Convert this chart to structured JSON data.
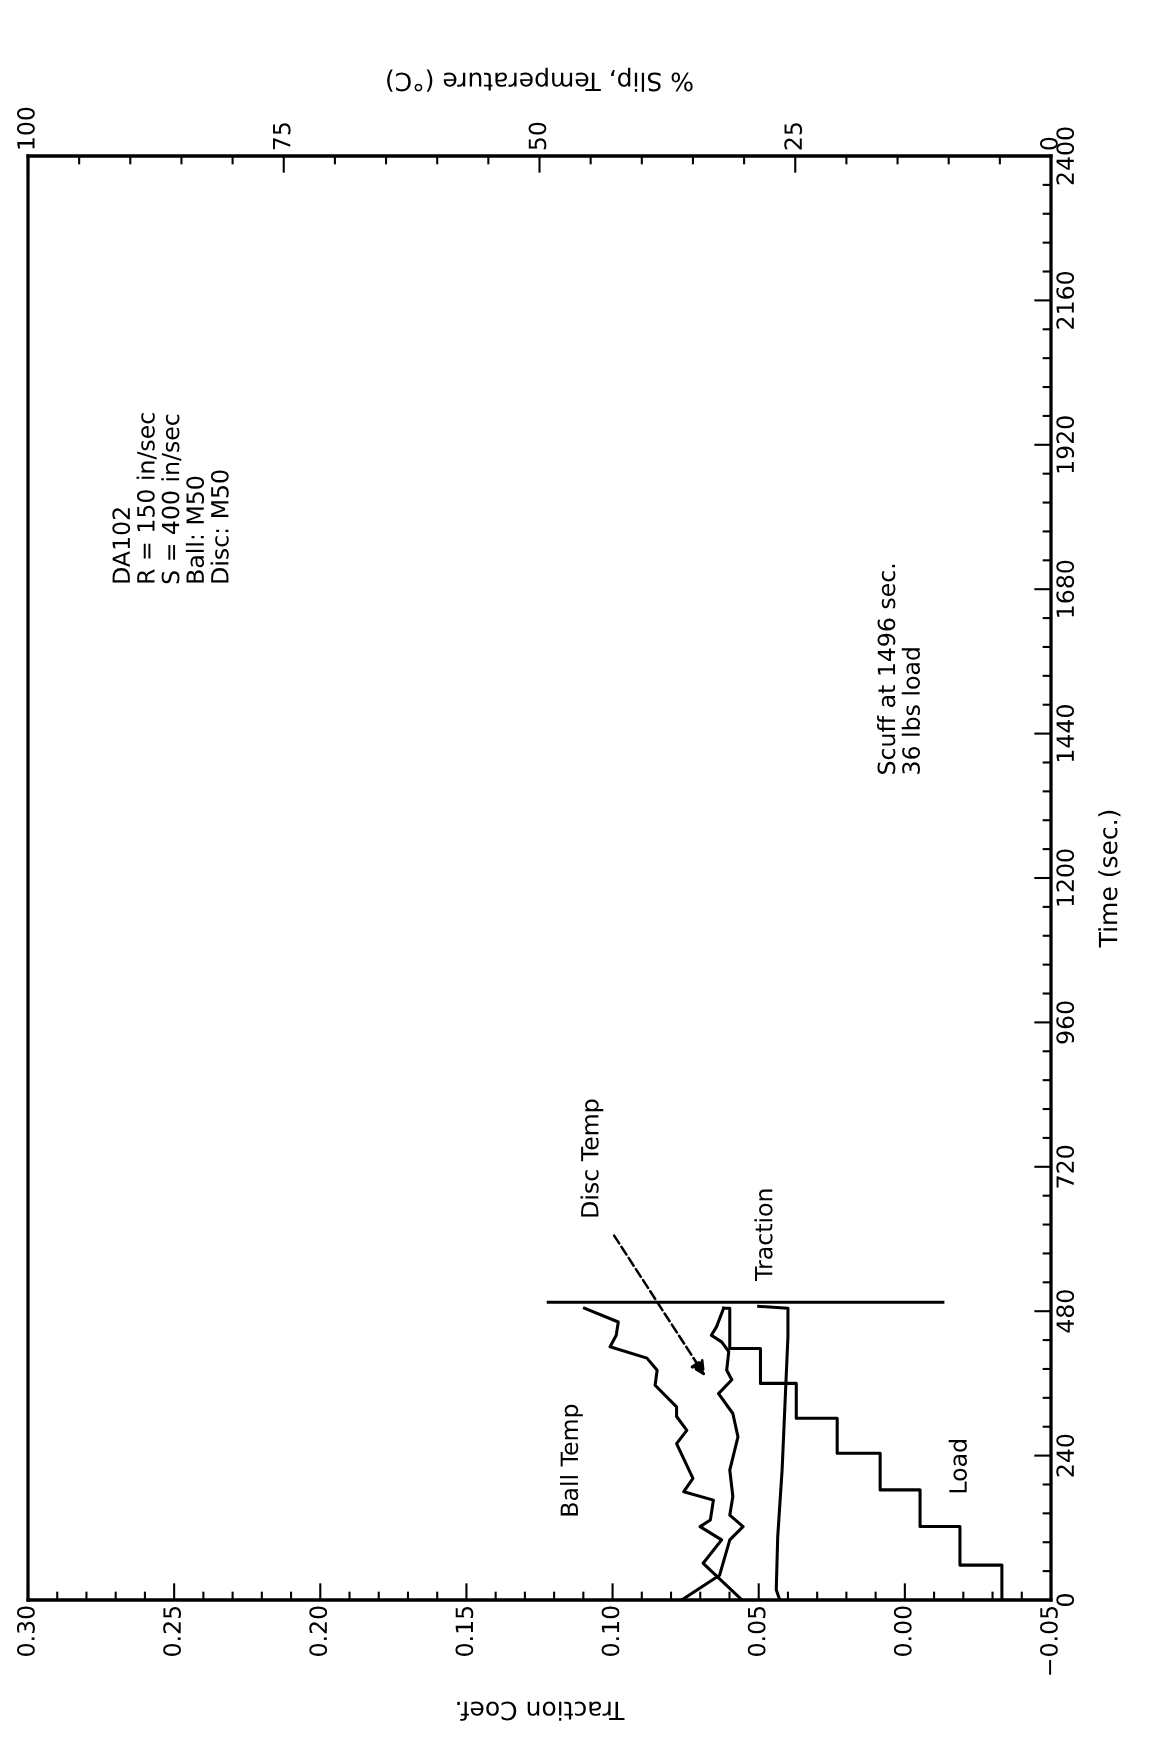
{
  "chart_data": {
    "type": "line",
    "xlabel": "Traction Coef.",
    "ylabel": "Time (sec.)",
    "x2label": "% Slip, Temperature (°C)",
    "xlim": [
      0.3,
      -0.05
    ],
    "xticks": [
      {
        "value": 0.3,
        "label": "0.30"
      },
      {
        "value": 0.25,
        "label": "0.25"
      },
      {
        "value": 0.2,
        "label": "0.20"
      },
      {
        "value": 0.15,
        "label": "0.15"
      },
      {
        "value": 0.1,
        "label": "0.10"
      },
      {
        "value": 0.05,
        "label": "0.05"
      },
      {
        "value": 0.0,
        "label": "0.00"
      },
      {
        "value": -0.05,
        "label": "−0.05"
      }
    ],
    "ylim": [
      0,
      2400
    ],
    "yticks": [
      0,
      240,
      480,
      720,
      960,
      1200,
      1440,
      1680,
      1920,
      2160,
      2400
    ],
    "x2lim": [
      100,
      0
    ],
    "x2ticks": [
      100,
      75,
      50,
      25,
      0
    ],
    "series": [
      {
        "name": "Ball Temp",
        "axis": "x2",
        "color": "#000000",
        "x": [
          30.2,
          34.0,
          32.2,
          34.3,
          33.3,
          33.0,
          35.9,
          35.0,
          36.6,
          35.6,
          36.6,
          36.6,
          38.7,
          38.5,
          39.5,
          43.1,
          42.5,
          42.3,
          45.6
        ],
        "values": [
          0,
          61,
          100,
          122,
          133,
          166,
          180,
          202,
          260,
          282,
          305,
          321,
          357,
          382,
          402,
          421,
          440,
          462,
          485
        ]
      },
      {
        "name": "Disc Temp",
        "axis": "x2",
        "color": "#000000",
        "x": [
          36.1,
          32.4,
          31.4,
          30.1,
          31.4,
          31.1,
          31.4,
          30.6,
          31.1,
          32.5,
          31.2,
          31.7,
          31.5,
          32.2,
          33.2,
          32.7,
          32.0
        ],
        "values": [
          0,
          41,
          100,
          122,
          141,
          172,
          216,
          271,
          310,
          343,
          366,
          382,
          413,
          429,
          440,
          454,
          485
        ]
      },
      {
        "name": "Traction",
        "color": "#000000",
        "x": [
          0.043,
          0.044,
          0.0435,
          0.042,
          0.041,
          0.04,
          0.04,
          0.05
        ],
        "values": [
          3,
          17,
          105,
          216,
          327,
          438,
          485,
          488
        ]
      },
      {
        "name": "Load",
        "axis": "x2",
        "color": "#000000",
        "x": [
          4.8,
          4.8,
          8.9,
          8.9,
          12.8,
          12.8,
          16.7,
          16.7,
          20.9,
          20.9,
          24.9,
          24.9,
          28.4,
          28.4,
          31.4,
          31.4,
          32.0
        ],
        "values": [
          3,
          58,
          58,
          122,
          122,
          183,
          183,
          244,
          244,
          302,
          302,
          360,
          360,
          418,
          418,
          485,
          485
        ]
      },
      {
        "color": "#000000",
        "x": [
          0.122,
          -0.013
        ],
        "values": [
          495,
          495
        ]
      }
    ],
    "annotations": [
      "DA102\nR = 150 in/sec\nS = 400 in/sec\nBall: M50\nDisc: M50",
      "Scuff at 1496 sec.\n36 lbs load"
    ],
    "legend": false,
    "grid": false
  }
}
